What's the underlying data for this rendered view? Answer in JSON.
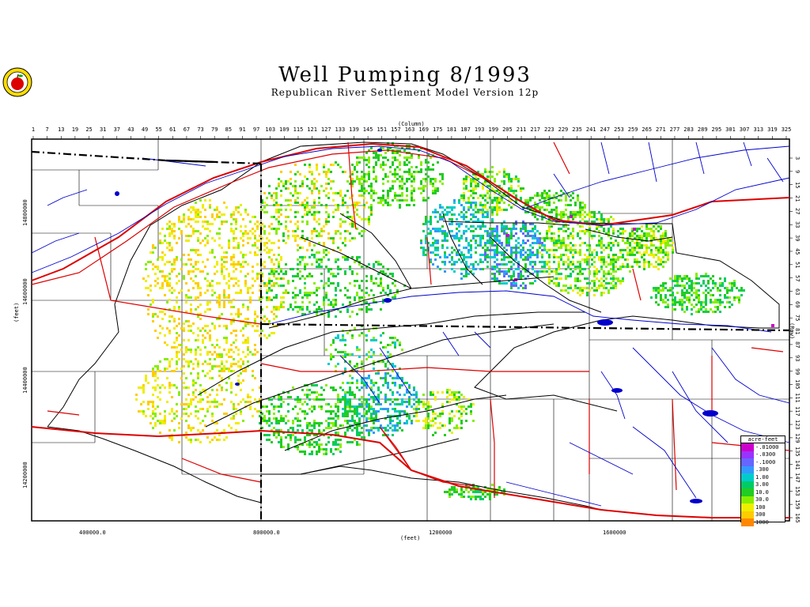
{
  "title": "Well Pumping   8/1993",
  "subtitle": "Republican River Settlement Model Version 12p",
  "axes": {
    "column_label": "(Column)",
    "row_label": "(Row)",
    "x_label": "(feet)",
    "y_label": "(feet)",
    "column_ticks": [
      "1",
      "7",
      "13",
      "19",
      "25",
      "31",
      "37",
      "43",
      "49",
      "55",
      "61",
      "67",
      "73",
      "79",
      "85",
      "91",
      "97",
      "103",
      "109",
      "115",
      "121",
      "127",
      "133",
      "139",
      "145",
      "151",
      "157",
      "163",
      "169",
      "175",
      "181",
      "187",
      "193",
      "199",
      "205",
      "211",
      "217",
      "223",
      "229",
      "235",
      "241",
      "247",
      "253",
      "259",
      "265",
      "271",
      "277",
      "283",
      "289",
      "295",
      "301",
      "307",
      "313",
      "319",
      "325"
    ],
    "row_ticks": [
      "3",
      "9",
      "15",
      "21",
      "27",
      "33",
      "39",
      "45",
      "51",
      "57",
      "63",
      "69",
      "75",
      "81",
      "87",
      "93",
      "99",
      "105",
      "111",
      "117",
      "123",
      "129",
      "135",
      "141",
      "147",
      "153",
      "159",
      "165"
    ],
    "x_ticks": [
      "400000.0",
      "800000.0",
      "1200000",
      "1600000"
    ],
    "y_ticks": [
      "14800000",
      "14600000",
      "14400000",
      "14200000"
    ]
  },
  "legend": {
    "title": "acre-feet",
    "items": [
      {
        "label": "-.01000",
        "color": "#cc00cc"
      },
      {
        "label": "-.0300",
        "color": "#9933ff"
      },
      {
        "label": "-.1000",
        "color": "#6666ff"
      },
      {
        "label": ".300",
        "color": "#3399ff"
      },
      {
        "label": "1.00",
        "color": "#00cccc"
      },
      {
        "label": "3.00",
        "color": "#00cc66"
      },
      {
        "label": "10.0",
        "color": "#22cc22"
      },
      {
        "label": "30.0",
        "color": "#88ee00"
      },
      {
        "label": "100",
        "color": "#eeee00"
      },
      {
        "label": "300",
        "color": "#ffcc00"
      },
      {
        "label": "1000",
        "color": "#ff8800"
      }
    ]
  },
  "colors": {
    "river": "#0000cc",
    "road": "#dd0000",
    "boundary": "#000000",
    "state_line": "#000000"
  }
}
